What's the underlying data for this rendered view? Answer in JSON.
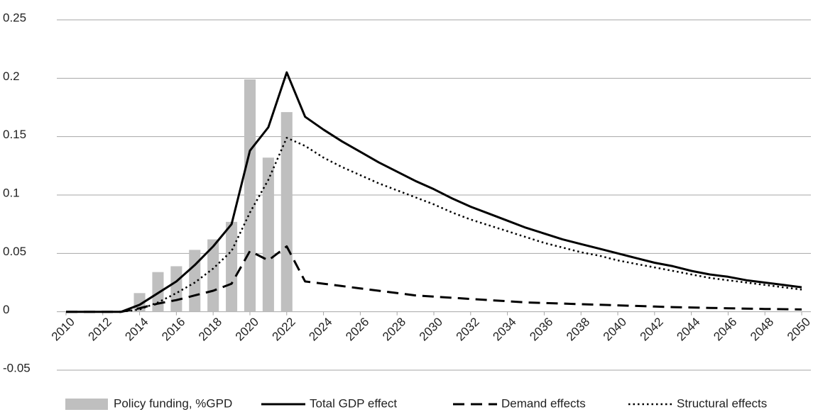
{
  "chart_data": {
    "type": "combo",
    "x": [
      2010,
      2011,
      2012,
      2013,
      2014,
      2015,
      2016,
      2017,
      2018,
      2019,
      2020,
      2021,
      2022,
      2023,
      2024,
      2025,
      2026,
      2027,
      2028,
      2029,
      2030,
      2031,
      2032,
      2033,
      2034,
      2035,
      2036,
      2037,
      2038,
      2039,
      2040,
      2041,
      2042,
      2043,
      2044,
      2045,
      2046,
      2047,
      2048,
      2049,
      2050
    ],
    "xlim": [
      2009.5,
      2050.5
    ],
    "xticks": [
      2010,
      2012,
      2014,
      2016,
      2018,
      2020,
      2022,
      2024,
      2026,
      2028,
      2030,
      2032,
      2034,
      2036,
      2038,
      2040,
      2042,
      2044,
      2046,
      2048,
      2050
    ],
    "ylim": [
      -0.05,
      0.25
    ],
    "yticks": [
      -0.05,
      0,
      0.05,
      0.1,
      0.15,
      0.2,
      0.25
    ],
    "grid": true,
    "legend": "bottom",
    "series": [
      {
        "name": "Policy funding, %GPD",
        "type": "bar",
        "color": "#bfbfbf",
        "values": [
          null,
          null,
          null,
          null,
          0.016,
          0.034,
          0.039,
          0.053,
          0.062,
          0.077,
          0.199,
          0.132,
          0.171,
          null,
          null,
          null,
          null,
          null,
          null,
          null,
          null,
          null,
          null,
          null,
          null,
          null,
          null,
          null,
          null,
          null,
          null,
          null,
          null,
          null,
          null,
          null,
          null,
          null,
          null,
          null,
          null
        ]
      },
      {
        "name": "Total GDP effect",
        "type": "line",
        "style": "solid",
        "color": "#000000",
        "values": [
          0,
          0,
          0,
          0,
          0.006,
          0.016,
          0.026,
          0.04,
          0.056,
          0.075,
          0.138,
          0.158,
          0.205,
          0.167,
          0.156,
          0.146,
          0.137,
          0.128,
          0.12,
          0.112,
          0.105,
          0.097,
          0.09,
          0.084,
          0.078,
          0.072,
          0.067,
          0.062,
          0.058,
          0.054,
          0.05,
          0.046,
          0.042,
          0.039,
          0.035,
          0.032,
          0.03,
          0.027,
          0.025,
          0.023,
          0.021
        ]
      },
      {
        "name": "Demand effects",
        "type": "line",
        "style": "dashed",
        "color": "#000000",
        "values": [
          0,
          0,
          0,
          0,
          0.003,
          0.007,
          0.01,
          0.014,
          0.018,
          0.024,
          0.052,
          0.044,
          0.056,
          0.026,
          0.024,
          0.022,
          0.02,
          0.018,
          0.016,
          0.014,
          0.013,
          0.012,
          0.011,
          0.01,
          0.009,
          0.008,
          0.0075,
          0.007,
          0.0065,
          0.006,
          0.0055,
          0.005,
          0.0045,
          0.004,
          0.0037,
          0.0033,
          0.003,
          0.0027,
          0.0024,
          0.0022,
          0.002
        ]
      },
      {
        "name": "Structural effects",
        "type": "line",
        "style": "dotted",
        "color": "#000000",
        "values": [
          0,
          0,
          0,
          0,
          0.002,
          0.008,
          0.016,
          0.025,
          0.037,
          0.052,
          0.085,
          0.113,
          0.149,
          0.142,
          0.132,
          0.124,
          0.117,
          0.11,
          0.104,
          0.098,
          0.092,
          0.085,
          0.079,
          0.074,
          0.069,
          0.064,
          0.059,
          0.055,
          0.051,
          0.048,
          0.044,
          0.041,
          0.038,
          0.035,
          0.032,
          0.029,
          0.027,
          0.025,
          0.023,
          0.021,
          0.019
        ]
      }
    ]
  }
}
